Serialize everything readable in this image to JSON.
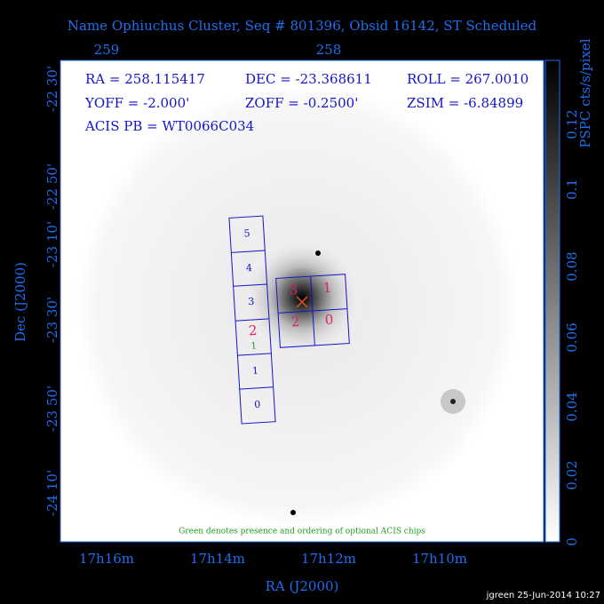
{
  "title": "Name Ophiuchus Cluster, Seq # 801396, Obsid 16142, ST Scheduled",
  "top_axis": {
    "labels": [
      "259",
      "258"
    ]
  },
  "left_axis": {
    "title": "Dec (J2000)",
    "labels": [
      "-22 30'",
      "-22 50'",
      "-23 10'",
      "-23 30'",
      "-23 50'",
      "-24 10'"
    ]
  },
  "bottom_axis": {
    "title": "RA (J2000)",
    "labels": [
      "17h16m",
      "17h14m",
      "17h12m",
      "17h10m"
    ]
  },
  "colorbar": {
    "title": "PSPC cts/s/pixel",
    "labels": [
      "0",
      "0.02",
      "0.04",
      "0.06",
      "0.08",
      "0.1",
      "0.12"
    ]
  },
  "info": [
    [
      "RA = 258.115417",
      "DEC = -23.368611",
      "ROLL = 267.0010"
    ],
    [
      "YOFF = -2.000'",
      "ZOFF = -0.2500'",
      "ZSIM = -6.84899"
    ],
    [
      "ACIS PB = WT0066C034"
    ]
  ],
  "s_array": [
    "5",
    "4",
    "3",
    "2",
    "1",
    "0"
  ],
  "optional_chip": "1",
  "i_array": [
    "3",
    "1",
    "2",
    "0"
  ],
  "note": "Green denotes presence and ordering of optional ACIS chips",
  "footer": "jgreen 25-Jun-2014 10:27"
}
